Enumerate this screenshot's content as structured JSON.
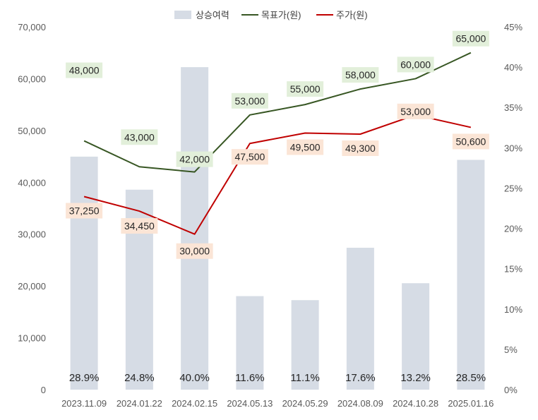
{
  "chart_data": {
    "type": "bar+line",
    "categories": [
      "2023.11.09",
      "2024.01.22",
      "2024.02.15",
      "2024.05.13",
      "2024.05.29",
      "2024.08.09",
      "2024.10.28",
      "2025.01.16"
    ],
    "series": [
      {
        "name": "상승여력",
        "type": "bar",
        "axis": "right",
        "values": [
          28.9,
          24.8,
          40.0,
          11.6,
          11.1,
          17.6,
          13.2,
          28.5
        ],
        "labels": [
          "28.9%",
          "24.8%",
          "40.0%",
          "11.6%",
          "11.1%",
          "17.6%",
          "13.2%",
          "28.5%"
        ],
        "color": "#d6dce5"
      },
      {
        "name": "목표가(원)",
        "type": "line",
        "axis": "left",
        "values": [
          48000,
          43000,
          42000,
          53000,
          55000,
          58000,
          60000,
          65000
        ],
        "labels": [
          "48,000",
          "43,000",
          "42,000",
          "53,000",
          "55,000",
          "58,000",
          "60,000",
          "65,000"
        ],
        "color": "#375623",
        "label_bg": "#e2efda"
      },
      {
        "name": "주가(원)",
        "type": "line",
        "axis": "left",
        "values": [
          37250,
          34450,
          30000,
          47500,
          49500,
          49300,
          53000,
          50600
        ],
        "labels": [
          "37,250",
          "34,450",
          "30,000",
          "47,500",
          "49,500",
          "49,300",
          "53,000",
          "50,600"
        ],
        "color": "#c00000",
        "label_bg": "#fbe5d6"
      }
    ],
    "y_left": {
      "min": 0,
      "max": 70000,
      "ticks": [
        "0",
        "10,000",
        "20,000",
        "30,000",
        "40,000",
        "50,000",
        "60,000",
        "70,000"
      ]
    },
    "y_right": {
      "min": 0,
      "max": 45,
      "ticks": [
        "0%",
        "5%",
        "10%",
        "15%",
        "20%",
        "25%",
        "30%",
        "35%",
        "40%",
        "45%"
      ]
    },
    "legend_position": "top-center",
    "grid": false
  }
}
